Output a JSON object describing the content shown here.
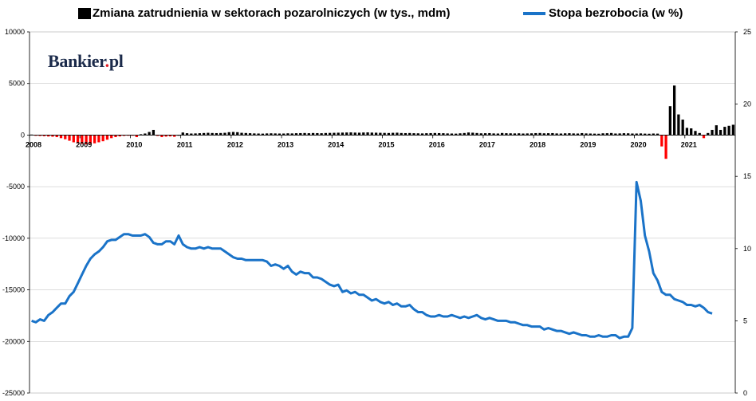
{
  "brand": {
    "name_part1": "Bankier",
    "name_dot": ".",
    "name_part2": "pl",
    "dot_color": "#e31e24"
  },
  "colors": {
    "bars_positive": "#000000",
    "bars_negative": "#ff0000",
    "line": "#1a73c8"
  },
  "chart_data": {
    "type": "bar+line",
    "title": "",
    "legend_position": "top",
    "legend": [
      {
        "label": "Zmiana zatrudnienia w sektorach pozarolniczych (w tys., mdm)",
        "marker": "square"
      },
      {
        "label": "Stopa bezrobocia (w %)",
        "marker": "line"
      }
    ],
    "y_left": {
      "lim": [
        -25000,
        10000
      ],
      "ticks": [
        10000,
        5000,
        0,
        -5000,
        -10000,
        -15000,
        -20000,
        -25000
      ],
      "tick_labels": [
        "10000",
        "5000",
        "0",
        "-5000",
        "-10000",
        "-15000",
        "-20000",
        "-25000"
      ]
    },
    "y_right": {
      "lim": [
        0,
        25
      ],
      "ticks": [
        25,
        20,
        15,
        10,
        5,
        0
      ],
      "tick_labels": [
        "25",
        "20",
        "15",
        "10",
        "5",
        "0"
      ]
    },
    "x": {
      "start": "2008-01",
      "frequency": "monthly",
      "year_labels": [
        "2008",
        "2009",
        "2010",
        "2011",
        "2012",
        "2013",
        "2014",
        "2015",
        "2016",
        "2017",
        "2018",
        "2019",
        "2020",
        "2021"
      ]
    },
    "series": [
      {
        "name": "Zmiana zatrudnienia w sektorach pozarolniczych (w tys., mdm)",
        "type": "bar",
        "axis": "left",
        "values": [
          50,
          -70,
          -90,
          -110,
          -140,
          -160,
          -200,
          -300,
          -400,
          -550,
          -700,
          -800,
          -850,
          -900,
          -850,
          -800,
          -700,
          -600,
          -450,
          -300,
          -200,
          -130,
          -80,
          -40,
          -60,
          -200,
          80,
          150,
          300,
          500,
          -80,
          -200,
          -150,
          -130,
          -170,
          0,
          250,
          180,
          150,
          160,
          180,
          200,
          220,
          200,
          190,
          200,
          220,
          280,
          300,
          280,
          220,
          200,
          180,
          160,
          150,
          140,
          160,
          170,
          160,
          150,
          150,
          170,
          160,
          180,
          190,
          200,
          180,
          200,
          190,
          180,
          200,
          210,
          220,
          230,
          240,
          250,
          260,
          240,
          230,
          250,
          260,
          240,
          230,
          220,
          210,
          200,
          220,
          230,
          200,
          190,
          200,
          180,
          170,
          160,
          180,
          190,
          200,
          190,
          180,
          160,
          150,
          140,
          170,
          200,
          250,
          230,
          200,
          170,
          180,
          190,
          160,
          150,
          200,
          180,
          170,
          160,
          170,
          150,
          160,
          170,
          190,
          200,
          170,
          180,
          190,
          160,
          150,
          170,
          180,
          160,
          150,
          190,
          160,
          150,
          140,
          130,
          170,
          180,
          200,
          150,
          160,
          180,
          170,
          150,
          150,
          160,
          140,
          130,
          150,
          140,
          -1100,
          -2300,
          2800,
          4800,
          2000,
          1500,
          700,
          650,
          400,
          200,
          -300,
          200,
          500,
          950,
          500,
          800,
          900,
          1000
        ]
      },
      {
        "name": "Stopa bezrobocia (w %)",
        "type": "line",
        "axis": "right",
        "values": [
          5.0,
          4.9,
          5.1,
          5.0,
          5.4,
          5.6,
          5.9,
          6.2,
          6.2,
          6.7,
          7.0,
          7.6,
          8.2,
          8.8,
          9.3,
          9.6,
          9.8,
          10.1,
          10.5,
          10.6,
          10.6,
          10.8,
          11.0,
          11.0,
          10.9,
          10.9,
          10.9,
          11.0,
          10.8,
          10.4,
          10.3,
          10.3,
          10.5,
          10.5,
          10.3,
          10.9,
          10.3,
          10.1,
          10.0,
          10.0,
          10.1,
          10.0,
          10.1,
          10.0,
          10.0,
          10.0,
          9.8,
          9.6,
          9.4,
          9.3,
          9.3,
          9.2,
          9.2,
          9.2,
          9.2,
          9.2,
          9.1,
          8.8,
          8.9,
          8.8,
          8.6,
          8.8,
          8.4,
          8.2,
          8.4,
          8.3,
          8.3,
          8.0,
          8.0,
          7.9,
          7.7,
          7.5,
          7.4,
          7.5,
          7.0,
          7.1,
          6.9,
          7.0,
          6.8,
          6.8,
          6.6,
          6.4,
          6.5,
          6.3,
          6.2,
          6.3,
          6.1,
          6.2,
          6.0,
          6.0,
          6.1,
          5.8,
          5.6,
          5.6,
          5.4,
          5.3,
          5.3,
          5.4,
          5.3,
          5.3,
          5.4,
          5.3,
          5.2,
          5.3,
          5.2,
          5.3,
          5.4,
          5.2,
          5.1,
          5.2,
          5.1,
          5.0,
          5.0,
          5.0,
          4.9,
          4.9,
          4.8,
          4.7,
          4.7,
          4.6,
          4.6,
          4.6,
          4.4,
          4.5,
          4.4,
          4.3,
          4.3,
          4.2,
          4.1,
          4.2,
          4.1,
          4.0,
          4.0,
          3.9,
          3.9,
          4.0,
          3.9,
          3.9,
          4.0,
          4.0,
          3.8,
          3.9,
          3.9,
          4.5,
          14.6,
          13.3,
          10.9,
          9.8,
          8.3,
          7.8,
          7.0,
          6.8,
          6.8,
          6.5,
          6.4,
          6.3,
          6.1,
          6.1,
          6.0,
          6.1,
          5.9,
          5.6,
          5.5
        ]
      }
    ]
  }
}
